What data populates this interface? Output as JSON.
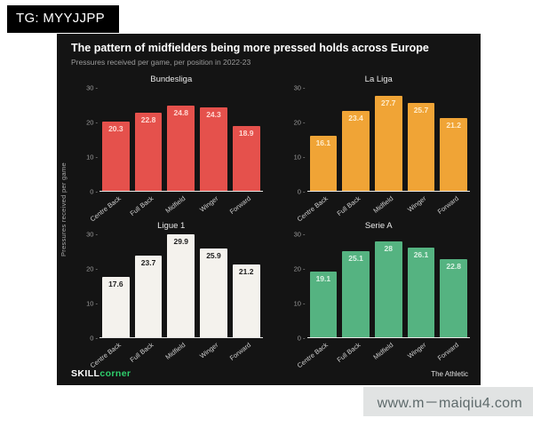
{
  "badge": {
    "text": "TG: MYYJJPP"
  },
  "panel": {
    "title": "The pattern of midfielders being more pressed holds across Europe",
    "subtitle": "Pressures received per game, per position in 2022-23",
    "y_axis_label": "Pressures received per game",
    "footer_left_bold": "SKILL",
    "footer_left_accent": "corner",
    "footer_right": "The Athletic"
  },
  "watermark": {
    "text": "www.m－maiqiu4.com"
  },
  "colors": {
    "panel_background": "#141414",
    "bundesliga_red": "#e5514c",
    "laliga_orange": "#f0a436",
    "ligue1_white": "#f4f2ed",
    "seriea_green": "#55b381",
    "skillcorner_green": "#2fd06d"
  },
  "chart_data": [
    {
      "type": "bar",
      "title": "Bundesliga",
      "categories": [
        "Centre Back",
        "Full Back",
        "Midfield",
        "Winger",
        "Forward"
      ],
      "values": [
        20.3,
        22.8,
        24.8,
        24.3,
        18.9
      ],
      "xlabel": "",
      "ylabel": "Pressures received per game",
      "ylim": [
        0,
        30
      ],
      "yticks": [
        0,
        10,
        20,
        30
      ],
      "grid": false,
      "bar_color": "#e5514c",
      "label_color": "#ffd9d3"
    },
    {
      "type": "bar",
      "title": "La Liga",
      "categories": [
        "Centre Back",
        "Full Back",
        "Midfield",
        "Winger",
        "Forward"
      ],
      "values": [
        16.1,
        23.4,
        27.7,
        25.7,
        21.2
      ],
      "xlabel": "",
      "ylabel": "Pressures received per game",
      "ylim": [
        0,
        30
      ],
      "yticks": [
        0,
        10,
        20,
        30
      ],
      "grid": false,
      "bar_color": "#f0a436",
      "label_color": "#ffeccb"
    },
    {
      "type": "bar",
      "title": "Ligue 1",
      "categories": [
        "Centre Back",
        "Full Back",
        "Midfield",
        "Winger",
        "Forward"
      ],
      "values": [
        17.6,
        23.7,
        29.9,
        25.9,
        21.2
      ],
      "xlabel": "",
      "ylabel": "Pressures received per game",
      "ylim": [
        0,
        30
      ],
      "yticks": [
        0,
        10,
        20,
        30
      ],
      "grid": false,
      "bar_color": "#f4f2ed",
      "label_color": "#1d1d1d"
    },
    {
      "type": "bar",
      "title": "Serie A",
      "categories": [
        "Centre Back",
        "Full Back",
        "Midfield",
        "Winger",
        "Forward"
      ],
      "values": [
        19.1,
        25.1,
        28,
        26.1,
        22.8
      ],
      "xlabel": "",
      "ylabel": "Pressures received per game",
      "ylim": [
        0,
        30
      ],
      "yticks": [
        0,
        10,
        20,
        30
      ],
      "grid": false,
      "bar_color": "#55b381",
      "label_color": "#dcf2e5"
    }
  ]
}
